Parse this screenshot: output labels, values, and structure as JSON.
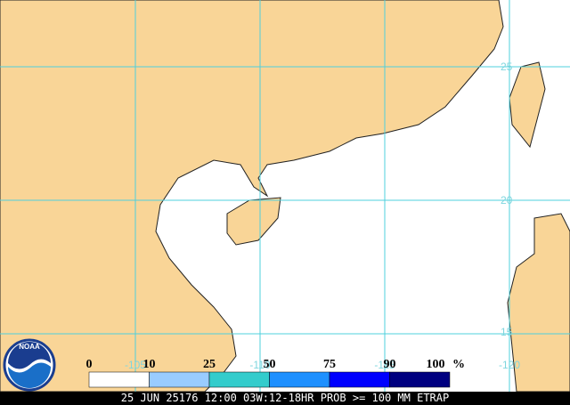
{
  "map": {
    "lat_labels": [
      "25",
      "20",
      "15"
    ],
    "lon_labels": [
      "-105",
      "-110",
      "-115",
      "-120"
    ],
    "logo": "NOAA",
    "legend": {
      "labels": [
        "0",
        "10",
        "25",
        "50",
        "75",
        "90",
        "100"
      ],
      "unit": "%",
      "colors": [
        "#ffffff",
        "#99ccff",
        "#33cccc",
        "#1e90ff",
        "#0000ff",
        "#000080"
      ]
    },
    "footer": "25 JUN 25176 12:00 03W:12-18HR PROB >= 100 MM ETRAP"
  }
}
